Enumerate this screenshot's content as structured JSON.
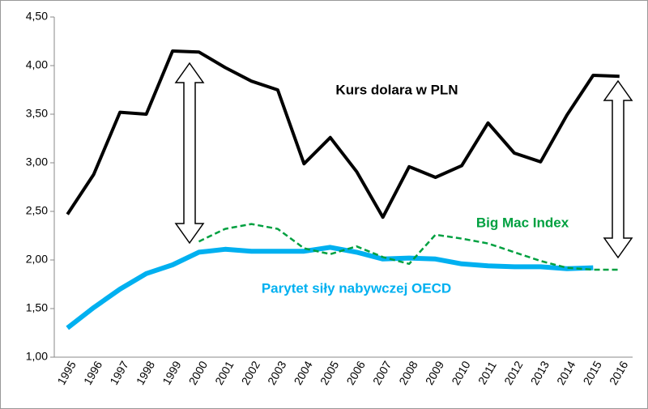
{
  "chart_data": {
    "type": "line",
    "categories": [
      "1995",
      "1996",
      "1997",
      "1998",
      "1999",
      "2000",
      "2001",
      "2002",
      "2003",
      "2004",
      "2005",
      "2006",
      "2007",
      "2008",
      "2009",
      "2010",
      "2011",
      "2012",
      "2013",
      "2014",
      "2015",
      "2016"
    ],
    "series": [
      {
        "name": "Kurs dolara w PLN",
        "color": "#000000",
        "dash": false,
        "width": 4,
        "values": [
          2.47,
          2.88,
          3.52,
          3.5,
          4.15,
          4.14,
          3.98,
          3.84,
          3.75,
          2.99,
          3.26,
          2.91,
          2.44,
          2.96,
          2.85,
          2.97,
          3.41,
          3.1,
          3.01,
          3.49,
          3.9,
          3.89
        ]
      },
      {
        "name": "Parytet siły nabywczej OECD",
        "color": "#00b0f0",
        "dash": false,
        "width": 6,
        "values": [
          1.3,
          1.51,
          1.7,
          1.86,
          1.95,
          2.08,
          2.11,
          2.09,
          2.09,
          2.09,
          2.13,
          2.08,
          2.01,
          2.02,
          2.01,
          1.96,
          1.94,
          1.93,
          1.93,
          1.91,
          1.92,
          null
        ]
      },
      {
        "name": "Big Mac Index",
        "color": "#00a040",
        "dash": true,
        "width": 2.5,
        "values": [
          null,
          null,
          null,
          null,
          null,
          2.19,
          2.32,
          2.37,
          2.32,
          2.12,
          2.06,
          2.14,
          2.03,
          1.96,
          2.26,
          2.22,
          2.17,
          2.08,
          1.99,
          1.92,
          1.9,
          1.9
        ]
      }
    ],
    "ylim": [
      1.0,
      4.5
    ],
    "yticks": [
      {
        "value": 1.0,
        "label": "1,00"
      },
      {
        "value": 1.5,
        "label": "1,50"
      },
      {
        "value": 2.0,
        "label": "2,00"
      },
      {
        "value": 2.5,
        "label": "2,50"
      },
      {
        "value": 3.0,
        "label": "3,00"
      },
      {
        "value": 3.5,
        "label": "3,50"
      },
      {
        "value": 4.0,
        "label": "4,00"
      },
      {
        "value": 4.5,
        "label": "4,50"
      }
    ],
    "grid": false
  }
}
